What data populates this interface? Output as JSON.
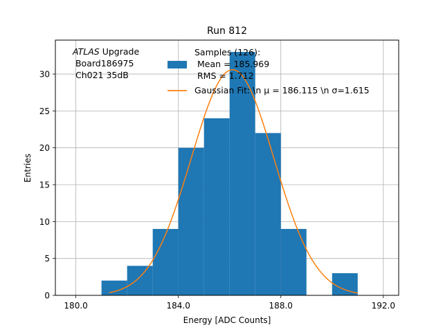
{
  "chart_data": {
    "type": "bar",
    "title": "Run 812",
    "xlabel": "Energy [ADC Counts]",
    "ylabel": "Entries",
    "xlim": [
      179.2,
      192.6
    ],
    "ylim": [
      0,
      34.6
    ],
    "xticks": [
      180.0,
      184.0,
      188.0,
      192.0
    ],
    "xtick_labels": [
      "180.0",
      "184.0",
      "188.0",
      "192.0"
    ],
    "yticks": [
      0,
      5,
      10,
      15,
      20,
      25,
      30
    ],
    "ytick_labels": [
      "0",
      "5",
      "10",
      "15",
      "20",
      "25",
      "30"
    ],
    "grid": true,
    "bin_edges": [
      181.0,
      182.0,
      183.0,
      184.0,
      185.0,
      186.0,
      187.0,
      188.0,
      189.0,
      190.0,
      191.0
    ],
    "values": [
      2,
      4,
      9,
      20,
      24,
      33,
      22,
      9,
      0,
      3
    ],
    "bar_color": "#1f77b4",
    "fit": {
      "type": "gaussian",
      "mu": 186.115,
      "sigma": 1.615,
      "amplitude": 30.6,
      "x_range": [
        181.3,
        191.0
      ],
      "color": "#ff7f0e"
    },
    "annotation": {
      "italic": "ATLAS",
      "line1_rest": " Upgrade",
      "line2": " Board186975",
      "line3": " Ch021 35dB"
    },
    "legend": {
      "position": "top-right",
      "samples": [
        "Samples (126):",
        " Mean = 185.969",
        " RMS = 1.712"
      ],
      "fit": "Gaussian Fit: \\n μ = 186.115 \\n σ=1.615"
    }
  }
}
